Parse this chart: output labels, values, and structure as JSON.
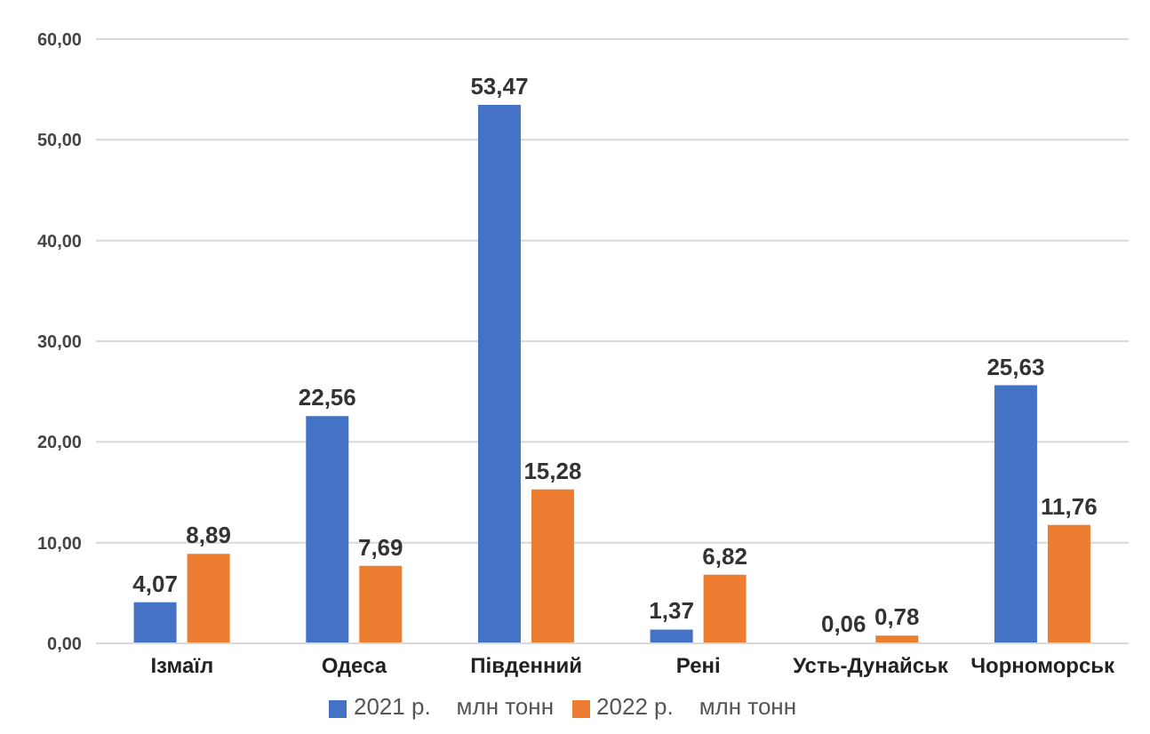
{
  "chart_data": {
    "type": "bar",
    "categories": [
      "Ізмаїл",
      "Одеса",
      "Південний",
      "Рені",
      "Усть-Дунайськ",
      "Чорноморськ"
    ],
    "series": [
      {
        "name": "2021 р.    млн тонн",
        "color": "#4472c4",
        "values": [
          4.07,
          22.56,
          53.47,
          1.37,
          0.06,
          25.63
        ],
        "value_labels": [
          "4,07",
          "22,56",
          "53,47",
          "1,37",
          "0,06",
          "25,63"
        ]
      },
      {
        "name": "2022 р.    млн тонн",
        "color": "#ed7d31",
        "values": [
          8.89,
          7.69,
          15.28,
          6.82,
          0.78,
          11.76
        ],
        "value_labels": [
          "8,89",
          "7,69",
          "15,28",
          "6,82",
          "0,78",
          "11,76"
        ]
      }
    ],
    "ylim": [
      0,
      60
    ],
    "yticks": [
      {
        "value": 0,
        "label": "0,00"
      },
      {
        "value": 10,
        "label": "10,00"
      },
      {
        "value": 20,
        "label": "20,00"
      },
      {
        "value": 30,
        "label": "30,00"
      },
      {
        "value": 40,
        "label": "40,00"
      },
      {
        "value": 50,
        "label": "50,00"
      },
      {
        "value": 60,
        "label": "60,00"
      }
    ],
    "grid": "y",
    "legend": "bottom"
  }
}
